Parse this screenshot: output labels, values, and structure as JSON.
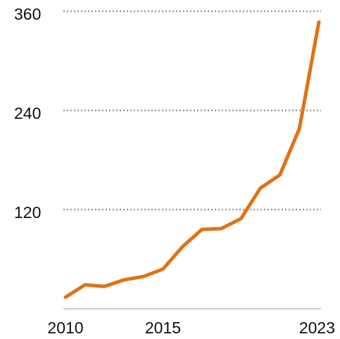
{
  "chart_data": {
    "type": "line",
    "x": [
      2010,
      2011,
      2012,
      2013,
      2014,
      2015,
      2016,
      2017,
      2018,
      2019,
      2020,
      2021,
      2022,
      2023
    ],
    "series": [
      {
        "color": "#e07214",
        "values": [
          14,
          29,
          27,
          35,
          39,
          48,
          75,
          96,
          97,
          109,
          146,
          162,
          218,
          347
        ]
      }
    ],
    "xlim": [
      2010,
      2023
    ],
    "xticks": [
      2010,
      2015,
      2023
    ],
    "ylim": [
      0,
      360
    ],
    "yticks": [
      120,
      240,
      360
    ],
    "grid": true
  }
}
